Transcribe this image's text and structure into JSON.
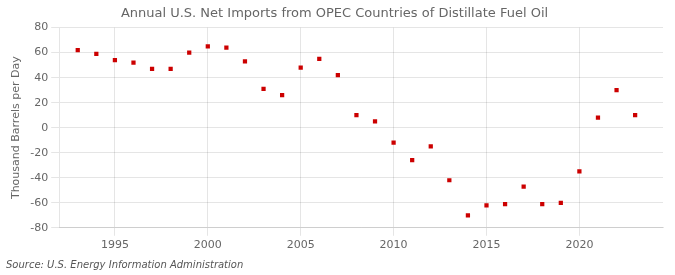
{
  "chart_data": {
    "type": "scatter",
    "title": "Annual U.S. Net Imports from OPEC Countries of Distillate Fuel Oil",
    "ylabel": "Thousand Barrels per Day",
    "annotations": [
      "Source: U.S. Energy Information Administration"
    ],
    "x": [
      1993,
      1994,
      1995,
      1996,
      1997,
      1998,
      1999,
      2000,
      2001,
      2002,
      2003,
      2004,
      2005,
      2006,
      2007,
      2008,
      2009,
      2010,
      2011,
      2012,
      2013,
      2014,
      2015,
      2016,
      2017,
      2018,
      2019,
      2020,
      2021,
      2022,
      2023
    ],
    "values": [
      62,
      59,
      54,
      52,
      47,
      47,
      60,
      65,
      64,
      53,
      31,
      26,
      48,
      55,
      42,
      10,
      5,
      -12,
      -26,
      -15,
      -42,
      -70,
      -62,
      -61,
      -47,
      -61,
      -60,
      -35,
      8,
      30,
      10
    ],
    "xlim": [
      1992,
      2024.5
    ],
    "xticks": [
      1995,
      2000,
      2005,
      2010,
      2015,
      2020
    ],
    "ylim": [
      -80,
      80
    ],
    "yticks": [
      -80,
      -60,
      -40,
      -20,
      0,
      20,
      40,
      60,
      80
    ],
    "color": "#cc0000",
    "marker": "square",
    "grid": true
  }
}
